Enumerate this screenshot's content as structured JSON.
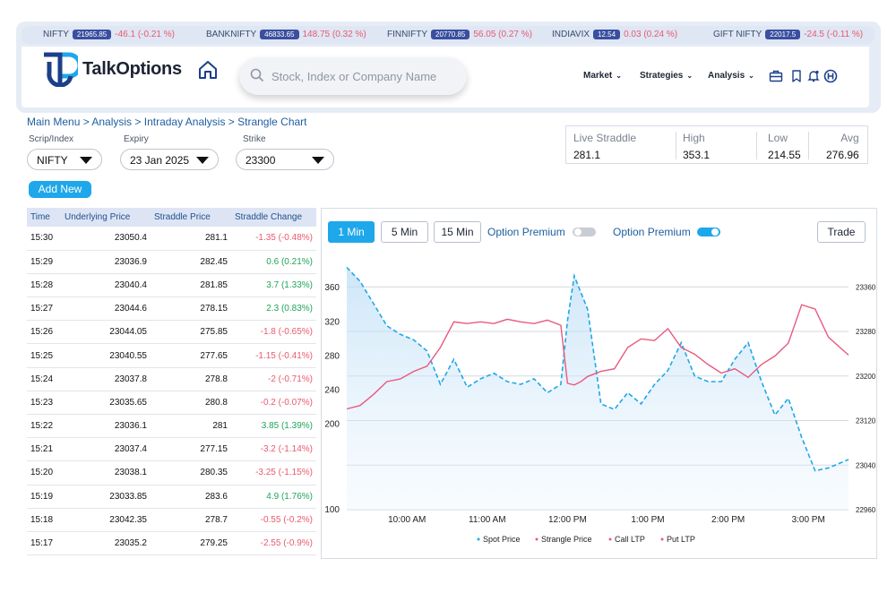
{
  "ticker": [
    {
      "name": "NIFTY",
      "value": "21965.85",
      "change": "-46.1 (-0.21 %)"
    },
    {
      "name": "BANKNIFTY",
      "value": "46833.65",
      "change": "148.75 (0.32 %)"
    },
    {
      "name": "FINNIFTY",
      "value": "20770.85",
      "change": "56.05 (0.27 %)"
    },
    {
      "name": "INDIAVIX",
      "value": "12.54",
      "change": "0.03 (0.24 %)"
    },
    {
      "name": "GIFT NIFTY",
      "value": "22017.5",
      "change": "-24.5 (-0.11 %)"
    }
  ],
  "header": {
    "brand": "TalkOptions",
    "search_placeholder": "Stock, Index or Company Name",
    "nav": [
      "Market",
      "Strategies",
      "Analysis"
    ],
    "icons": [
      "home-icon",
      "search-icon",
      "briefcase-icon",
      "bookmark-icon",
      "bell-icon",
      "user-icon"
    ]
  },
  "breadcrumb": "Main Menu > Analysis > Intraday Analysis > Strangle Chart",
  "filters": {
    "scrip_label": "Scrip/Index",
    "scrip_value": "NIFTY",
    "expiry_label": "Expiry",
    "expiry_value": "23 Jan 2025",
    "strike_label": "Strike",
    "strike_value": "23300"
  },
  "add_new_label": "Add New",
  "stats": {
    "live_straddle_label": "Live Straddle",
    "live_straddle": "281.1",
    "high_label": "High",
    "high": "353.1",
    "low_label": "Low",
    "low": "214.55",
    "avg_label": "Avg",
    "avg": "276.96"
  },
  "table": {
    "headers": [
      "Time",
      "Underlying Price",
      "Straddle Price",
      "Straddle Change"
    ],
    "rows": [
      [
        "15:30",
        "23050.4",
        "281.1",
        "-1.35 (-0.48%)"
      ],
      [
        "15:29",
        "23036.9",
        "282.45",
        "0.6 (0.21%)"
      ],
      [
        "15:28",
        "23040.4",
        "281.85",
        "3.7 (1.33%)"
      ],
      [
        "15:27",
        "23044.6",
        "278.15",
        "2.3 (0.83%)"
      ],
      [
        "15:26",
        "23044.05",
        "275.85",
        "-1.8 (-0.65%)"
      ],
      [
        "15:25",
        "23040.55",
        "277.65",
        "-1.15 (-0.41%)"
      ],
      [
        "15:24",
        "23037.8",
        "278.8",
        "-2 (-0.71%)"
      ],
      [
        "15:23",
        "23035.65",
        "280.8",
        "-0.2 (-0.07%)"
      ],
      [
        "15:22",
        "23036.1",
        "281",
        "3.85 (1.39%)"
      ],
      [
        "15:21",
        "23037.4",
        "277.15",
        "-3.2 (-1.14%)"
      ],
      [
        "15:20",
        "23038.1",
        "280.35",
        "-3.25 (-1.15%)"
      ],
      [
        "15:19",
        "23033.85",
        "283.6",
        "4.9 (1.76%)"
      ],
      [
        "15:18",
        "23042.35",
        "278.7",
        "-0.55 (-0.2%)"
      ],
      [
        "15:17",
        "23035.2",
        "279.25",
        "-2.55 (-0.9%)"
      ]
    ]
  },
  "chart_controls": {
    "intervals": [
      "1 Min",
      "5 Min",
      "15 Min"
    ],
    "active_interval": "1 Min",
    "toggle1_label": "Option Premium",
    "toggle1_on": false,
    "toggle2_label": "Option Premium",
    "toggle2_on": true,
    "trade_label": "Trade"
  },
  "colors": {
    "accent": "#1ea7ea",
    "spot": "#1ea7ea",
    "strangle": "#e85a7e",
    "positive": "#20a35c",
    "negative": "#e85a6e"
  },
  "chart_data": {
    "type": "line",
    "x_ticks": [
      "10:00 AM",
      "11:00 AM",
      "12:00 PM",
      "1:00 PM",
      "2:00 PM",
      "3:00 PM"
    ],
    "y_left_ticks": [
      100,
      200,
      240,
      280,
      320,
      360
    ],
    "y_right_ticks": [
      22960,
      23040,
      23120,
      23200,
      23280,
      23360
    ],
    "legend": [
      "Spot Price",
      "Strangle Price",
      "Call LTP",
      "Put LTP"
    ],
    "legend_position": "bottom",
    "series": [
      {
        "name": "Spot Price",
        "axis": "right",
        "values": [
          [
            "09:15",
            23395
          ],
          [
            "09:25",
            23370
          ],
          [
            "09:35",
            23330
          ],
          [
            "09:45",
            23290
          ],
          [
            "09:55",
            23275
          ],
          [
            "10:05",
            23265
          ],
          [
            "10:15",
            23245
          ],
          [
            "10:25",
            23185
          ],
          [
            "10:35",
            23230
          ],
          [
            "10:45",
            23180
          ],
          [
            "10:55",
            23195
          ],
          [
            "11:05",
            23205
          ],
          [
            "11:15",
            23190
          ],
          [
            "11:25",
            23185
          ],
          [
            "11:35",
            23195
          ],
          [
            "11:45",
            23170
          ],
          [
            "11:55",
            23185
          ],
          [
            "12:00",
            23300
          ],
          [
            "12:05",
            23380
          ],
          [
            "12:10",
            23350
          ],
          [
            "12:15",
            23320
          ],
          [
            "12:25",
            23150
          ],
          [
            "12:35",
            23140
          ],
          [
            "12:45",
            23170
          ],
          [
            "12:55",
            23150
          ],
          [
            "13:05",
            23185
          ],
          [
            "13:15",
            23210
          ],
          [
            "13:25",
            23260
          ],
          [
            "13:35",
            23200
          ],
          [
            "13:45",
            23190
          ],
          [
            "13:55",
            23190
          ],
          [
            "14:05",
            23230
          ],
          [
            "14:15",
            23260
          ],
          [
            "14:25",
            23190
          ],
          [
            "14:35",
            23130
          ],
          [
            "14:45",
            23160
          ],
          [
            "14:55",
            23090
          ],
          [
            "15:05",
            23030
          ],
          [
            "15:15",
            23035
          ],
          [
            "15:30",
            23050
          ]
        ]
      },
      {
        "name": "Strangle Price",
        "axis": "left",
        "values": [
          [
            "09:15",
            218
          ],
          [
            "09:25",
            222
          ],
          [
            "09:35",
            235
          ],
          [
            "09:45",
            250
          ],
          [
            "09:55",
            253
          ],
          [
            "10:05",
            262
          ],
          [
            "10:15",
            268
          ],
          [
            "10:25",
            290
          ],
          [
            "10:35",
            320
          ],
          [
            "10:45",
            318
          ],
          [
            "10:55",
            320
          ],
          [
            "11:05",
            318
          ],
          [
            "11:15",
            323
          ],
          [
            "11:25",
            320
          ],
          [
            "11:35",
            318
          ],
          [
            "11:45",
            322
          ],
          [
            "11:55",
            316
          ],
          [
            "12:00",
            248
          ],
          [
            "12:05",
            246
          ],
          [
            "12:10",
            250
          ],
          [
            "12:15",
            256
          ],
          [
            "12:25",
            262
          ],
          [
            "12:35",
            265
          ],
          [
            "12:45",
            290
          ],
          [
            "12:55",
            300
          ],
          [
            "13:05",
            298
          ],
          [
            "13:15",
            312
          ],
          [
            "13:25",
            290
          ],
          [
            "13:35",
            282
          ],
          [
            "13:45",
            270
          ],
          [
            "13:55",
            260
          ],
          [
            "14:05",
            265
          ],
          [
            "14:15",
            255
          ],
          [
            "14:25",
            270
          ],
          [
            "14:35",
            280
          ],
          [
            "14:45",
            295
          ],
          [
            "14:55",
            340
          ],
          [
            "15:05",
            335
          ],
          [
            "15:15",
            302
          ],
          [
            "15:30",
            281
          ]
        ]
      }
    ]
  }
}
